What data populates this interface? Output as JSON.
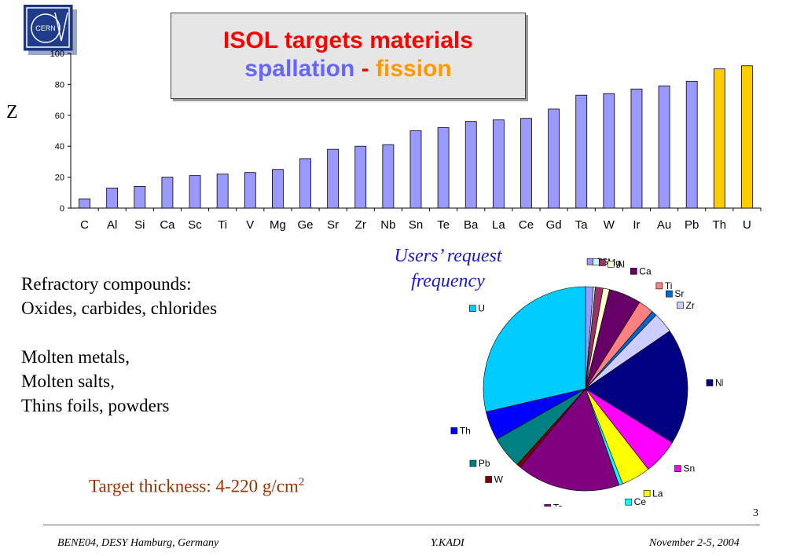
{
  "slide": {
    "title_line1": "ISOL targets materials",
    "title_spallation": "spallation",
    "title_dash": "-",
    "title_fission": "fission",
    "y_axis_label": "Z",
    "pie_title_line1": "Users’ request",
    "pie_title_line2": "frequency",
    "left_text": [
      "Refractory compounds:",
      "Oxides, carbides, chlorides",
      "Molten metals,",
      "Molten salts,",
      "Thins foils, powders"
    ],
    "thickness_label": "Target thickness: 4-220 g/cm",
    "thickness_sup": "2",
    "page_number": "3",
    "footer_left": "BENE04, DESY Hamburg, Germany",
    "footer_center": "Y.KADI",
    "footer_right": "November 2-5, 2004",
    "logo_text": "CERN"
  },
  "chart_data": [
    {
      "type": "bar",
      "categories": [
        "C",
        "Al",
        "Si",
        "Ca",
        "Sc",
        "Ti",
        "V",
        "Mg",
        "Ge",
        "Sr",
        "Zr",
        "Nb",
        "Sn",
        "Te",
        "Ba",
        "La",
        "Ce",
        "Gd",
        "Ta",
        "W",
        "Ir",
        "Au",
        "Pb",
        "Th",
        "U"
      ],
      "values": [
        6,
        13,
        14,
        20,
        21,
        22,
        23,
        25,
        32,
        38,
        40,
        41,
        50,
        52,
        56,
        57,
        58,
        64,
        73,
        74,
        77,
        79,
        82,
        90,
        92
      ],
      "ylabel": "Z",
      "ylim": [
        0,
        100
      ],
      "yticks": [
        0,
        20,
        40,
        60,
        80,
        100
      ],
      "colors": {
        "default": "#9999ff",
        "fission": "#ffcc00",
        "edge": "#000000"
      },
      "highlight_categories": [
        "Th",
        "U"
      ]
    },
    {
      "type": "pie",
      "labels": [
        "C",
        "Si",
        "Mg",
        "Al",
        "Ca",
        "Ti",
        "Sr",
        "Zr",
        "Nb",
        "Sn",
        "La",
        "Ce",
        "Ta",
        "W",
        "Pb",
        "Th",
        "U"
      ],
      "values": [
        1.2,
        0.3,
        1.2,
        1.0,
        5.0,
        2.4,
        0.8,
        3.2,
        18.0,
        5.5,
        4.5,
        0.6,
        16.0,
        0.6,
        5.0,
        4.5,
        28.0
      ],
      "colors": [
        "#9999ff",
        "#ccffff",
        "#993366",
        "#ffffcc",
        "#660066",
        "#ff8080",
        "#0066cc",
        "#ccccff",
        "#000080",
        "#ff00ff",
        "#ffff00",
        "#00ffff",
        "#800080",
        "#800000",
        "#008080",
        "#0000ff",
        "#00ccff"
      ]
    }
  ]
}
